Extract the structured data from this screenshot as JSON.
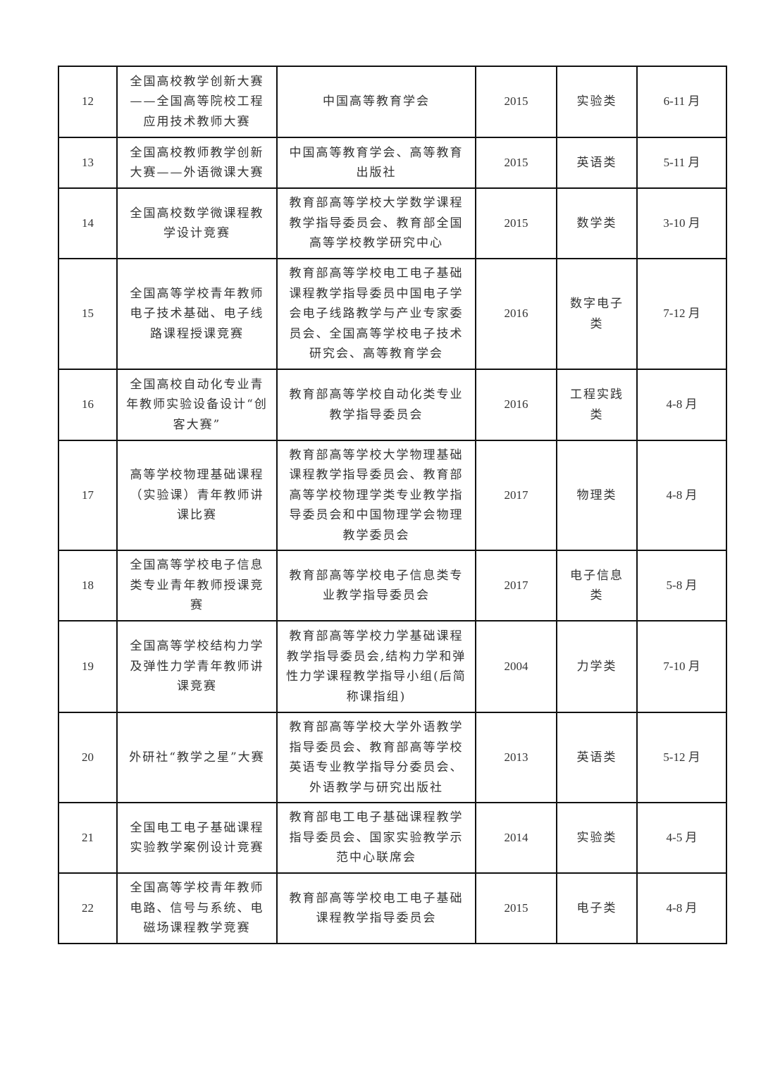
{
  "rows": [
    {
      "no": "12",
      "name": "全国高校教学创新大赛\n——全国高等院校工程\n应用技术教师大赛",
      "org": "中国高等教育学会",
      "year": "2015",
      "category": "实验类",
      "period": "6-11 月"
    },
    {
      "no": "13",
      "name": "全国高校教师教学创新\n大赛——外语微课大赛",
      "org": "中国高等教育学会、高等教育\n出版社",
      "year": "2015",
      "category": "英语类",
      "period": "5-11 月"
    },
    {
      "no": "14",
      "name": "全国高校数学微课程教\n学设计竞赛",
      "org": "教育部高等学校大学数学课程\n教学指导委员会、教育部全国\n高等学校教学研究中心",
      "year": "2015",
      "category": "数学类",
      "period": "3-10 月"
    },
    {
      "no": "15",
      "name": "全国高等学校青年教师\n电子技术基础、电子线\n路课程授课竞赛",
      "org": "教育部高等学校电工电子基础\n课程教学指导委员中国电子学\n会电子线路教学与产业专家委\n员会、全国高等学校电子技术\n研究会、高等教育学会",
      "year": "2016",
      "category": "数字电子\n类",
      "period": "7-12 月"
    },
    {
      "no": "16",
      "name": "全国高校自动化专业青\n年教师实验设备设计“创\n客大赛”",
      "org": "教育部高等学校自动化类专业\n教学指导委员会",
      "year": "2016",
      "category": "工程实践\n类",
      "period": "4-8 月"
    },
    {
      "no": "17",
      "name": "高等学校物理基础课程\n（实验课）青年教师讲\n课比赛",
      "org": "教育部高等学校大学物理基础\n课程教学指导委员会、教育部\n高等学校物理学类专业教学指\n导委员会和中国物理学会物理\n教学委员会",
      "year": "2017",
      "category": "物理类",
      "period": "4-8 月"
    },
    {
      "no": "18",
      "name": "全国高等学校电子信息\n类专业青年教师授课竞\n赛",
      "org": "教育部高等学校电子信息类专\n业教学指导委员会",
      "year": "2017",
      "category": "电子信息\n类",
      "period": "5-8 月"
    },
    {
      "no": "19",
      "name": "全国高等学校结构力学\n及弹性力学青年教师讲\n课竞赛",
      "org": "教育部高等学校力学基础课程\n教学指导委员会,结构力学和弹\n性力学课程教学指导小组(后简\n称课指组)",
      "year": "2004",
      "category": "力学类",
      "period": "7-10 月"
    },
    {
      "no": "20",
      "name": "外研社“教学之星”大赛",
      "org": "教育部高等学校大学外语教学\n指导委员会、教育部高等学校\n英语专业教学指导分委员会、\n外语教学与研究出版社",
      "year": "2013",
      "category": "英语类",
      "period": "5-12 月"
    },
    {
      "no": "21",
      "name": "全国电工电子基础课程\n实验教学案例设计竞赛",
      "org": "教育部电工电子基础课程教学\n指导委员会、国家实验教学示\n范中心联席会",
      "year": "2014",
      "category": "实验类",
      "period": "4-5 月"
    },
    {
      "no": "22",
      "name": "全国高等学校青年教师\n电路、信号与系统、电\n磁场课程教学竞赛",
      "org": "教育部高等学校电工电子基础\n课程教学指导委员会",
      "year": "2015",
      "category": "电子类",
      "period": "4-8 月"
    }
  ]
}
